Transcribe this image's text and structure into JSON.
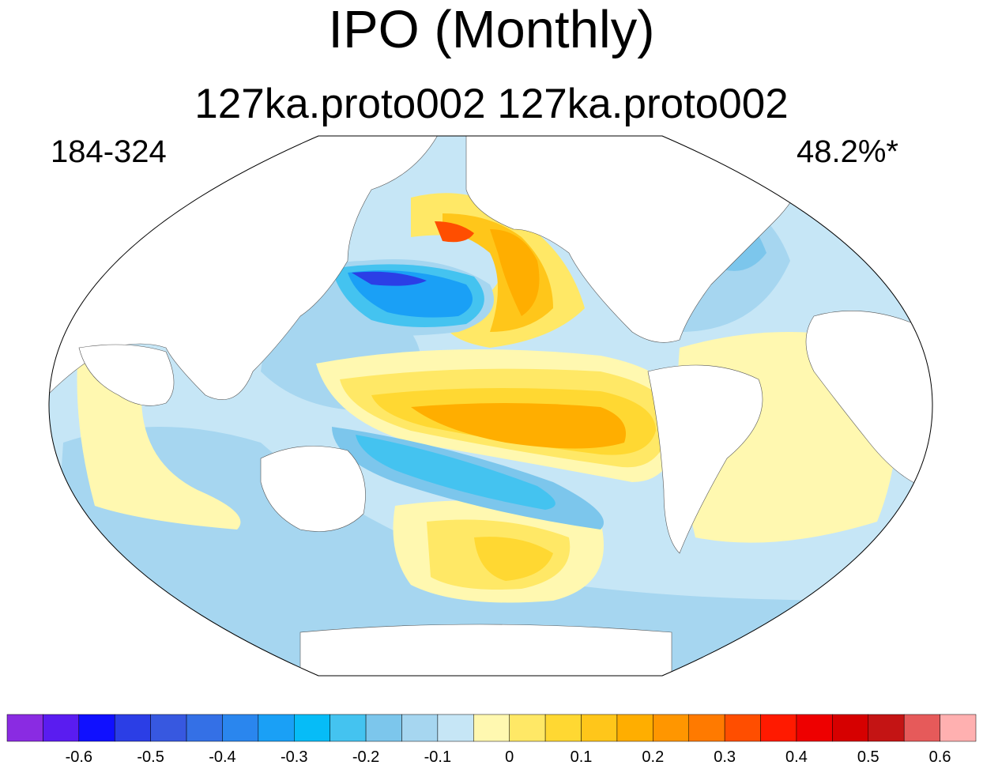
{
  "title": "IPO (Monthly)",
  "subtitle": "127ka.proto002  127ka.proto002",
  "left_label": "184-324",
  "right_label": "48.2%*",
  "colorbar": {
    "colors": [
      "#8a2be2",
      "#5a1cf0",
      "#1010ff",
      "#2b3ee6",
      "#3758e0",
      "#3470e6",
      "#2a86ee",
      "#1aa0f6",
      "#06bcf7",
      "#44c3f0",
      "#7cc6ec",
      "#a6d6f0",
      "#c6e6f6",
      "#fff8b0",
      "#ffe866",
      "#ffd832",
      "#ffc61a",
      "#ffae00",
      "#ff9600",
      "#ff7a00",
      "#ff4e00",
      "#ff1a00",
      "#ee0000",
      "#d60000",
      "#c41414",
      "#e65a5a",
      "#ffb0b0"
    ],
    "tick_labels": [
      "-0.6",
      "-0.5",
      "-0.4",
      "-0.3",
      "-0.2",
      "-0.1",
      "0",
      "0.1",
      "0.2",
      "0.3",
      "0.4",
      "0.5",
      "0.6"
    ]
  }
}
